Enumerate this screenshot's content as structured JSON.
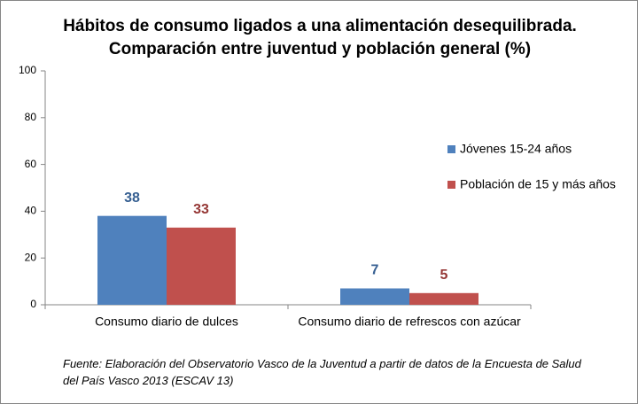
{
  "chart_data": {
    "type": "bar",
    "title": "Hábitos de consumo ligados a una alimentación desequilibrada. Comparación entre juventud y población general (%)",
    "categories": [
      "Consumo diario de dulces",
      "Consumo diario de refrescos con azúcar"
    ],
    "series": [
      {
        "name": "Jóvenes 15-24 años",
        "color": "#4f81bd",
        "label_color": "#376092",
        "values": [
          38,
          7
        ]
      },
      {
        "name": "Población de 15 y más años",
        "color": "#c0504d",
        "label_color": "#953735",
        "values": [
          33,
          5
        ]
      }
    ],
    "ylim": [
      0,
      100
    ],
    "yticks": [
      0,
      20,
      40,
      60,
      80,
      100
    ],
    "grid": false,
    "legend": "right",
    "source": "Fuente: Elaboración del Observatorio Vasco de la Juventud a partir de datos de la Encuesta de Salud del País Vasco 2013 (ESCAV 13)"
  }
}
